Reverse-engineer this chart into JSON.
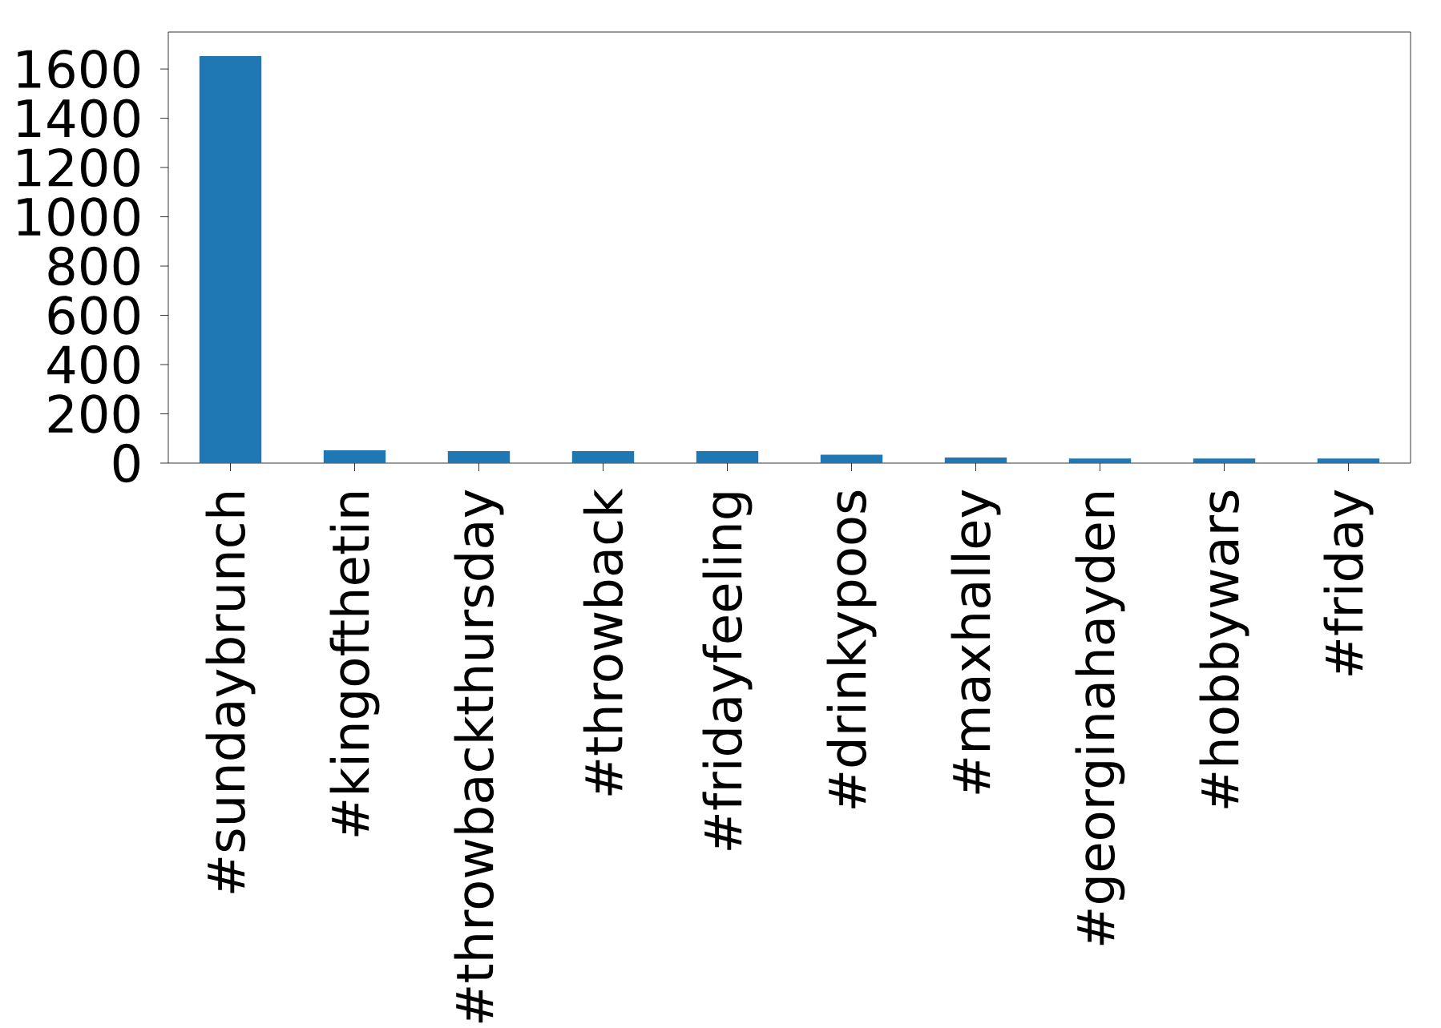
{
  "chart_data": {
    "type": "bar",
    "categories": [
      "#sundaybrunch",
      "#kingofthetin",
      "#throwbackthursday",
      "#throwback",
      "#fridayfeeling",
      "#drinkypoos",
      "#maxhalley",
      "#georginahayden",
      "#hobbywars",
      "#friday"
    ],
    "values": [
      1652,
      52,
      49,
      49,
      49,
      34,
      23,
      19,
      19,
      19
    ],
    "color": "#1f77b4",
    "ylim": [
      0,
      1750
    ],
    "yticks": [
      0,
      200,
      400,
      600,
      800,
      1000,
      1200,
      1400,
      1600
    ]
  }
}
